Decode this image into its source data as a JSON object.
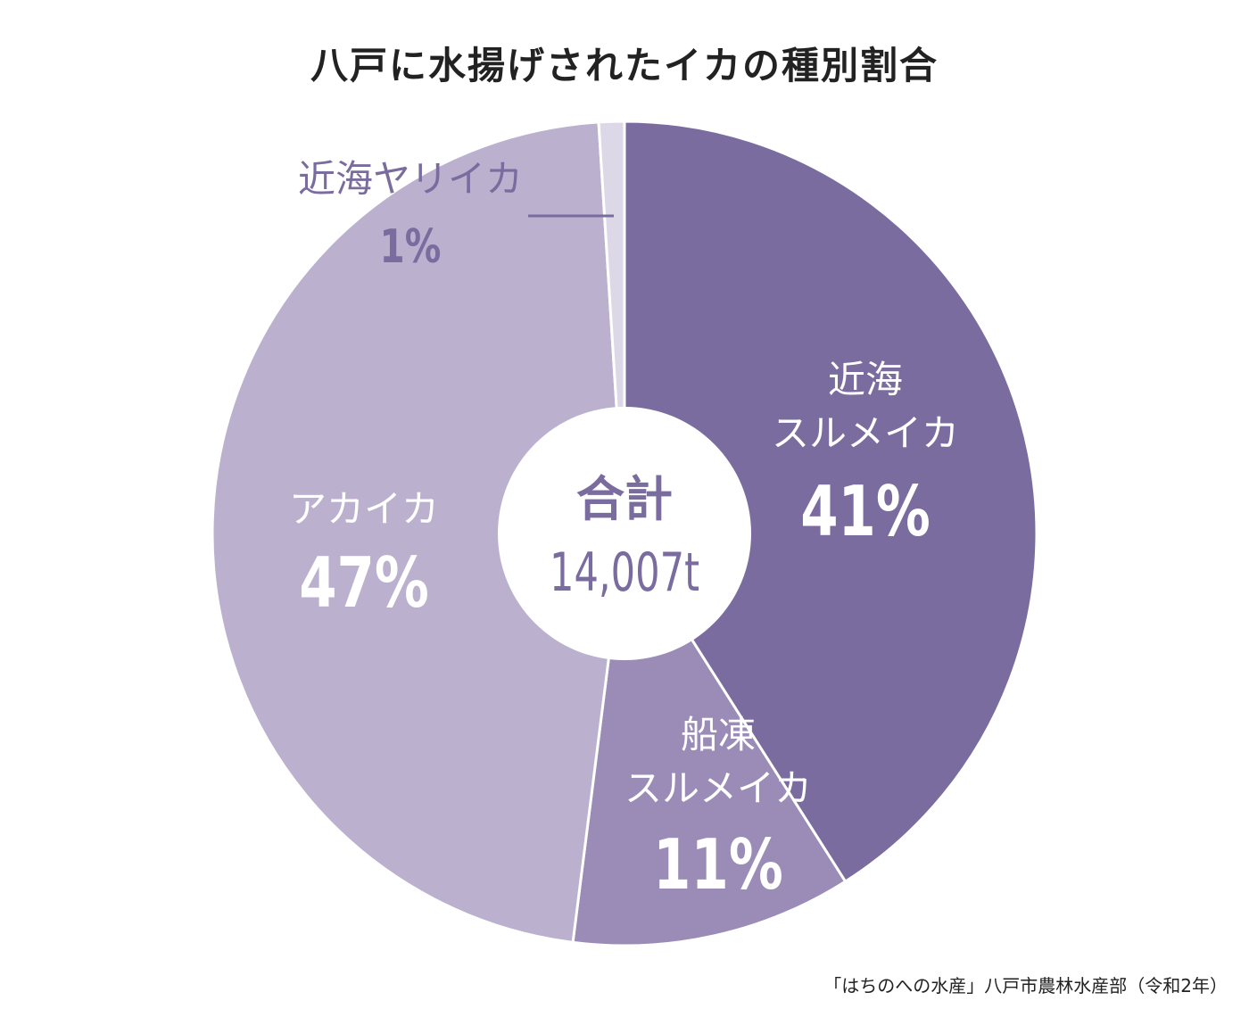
{
  "title": "八戸に水揚げされたイカの種別割合",
  "source": "「はちのへの水産」八戸市農林水産部（令和2年）",
  "center": {
    "label": "合計",
    "total": "14,007t"
  },
  "colors": {
    "kinkai_surumeika": "#7a6c9e",
    "sento_surumeika": "#9a8cb6",
    "akaika": "#bbb1cf",
    "yariika": "#ddd8e8",
    "label_dark": "#7a6c9e",
    "label_light": "#ffffff",
    "center_text": "#7a6c9e"
  },
  "chart_data": {
    "type": "pie",
    "title": "八戸に水揚げされたイカの種別割合",
    "start": "top",
    "direction": "clockwise",
    "slices": [
      {
        "name": "近海スルメイカ",
        "label_lines": [
          "近海",
          "スルメイカ"
        ],
        "value": 41,
        "display": "41%",
        "color_key": "kinkai_surumeika"
      },
      {
        "name": "船凍スルメイカ",
        "label_lines": [
          "船凍",
          "スルメイカ"
        ],
        "value": 11,
        "display": "11%",
        "color_key": "sento_surumeika"
      },
      {
        "name": "アカイカ",
        "label_lines": [
          "アカイカ"
        ],
        "value": 47,
        "display": "47%",
        "color_key": "akaika"
      },
      {
        "name": "近海ヤリイカ",
        "label_lines": [
          "近海ヤリイカ"
        ],
        "value": 1,
        "display": "1%",
        "color_key": "yariika"
      }
    ],
    "total_label": "合計",
    "total_value": "14,007t"
  }
}
